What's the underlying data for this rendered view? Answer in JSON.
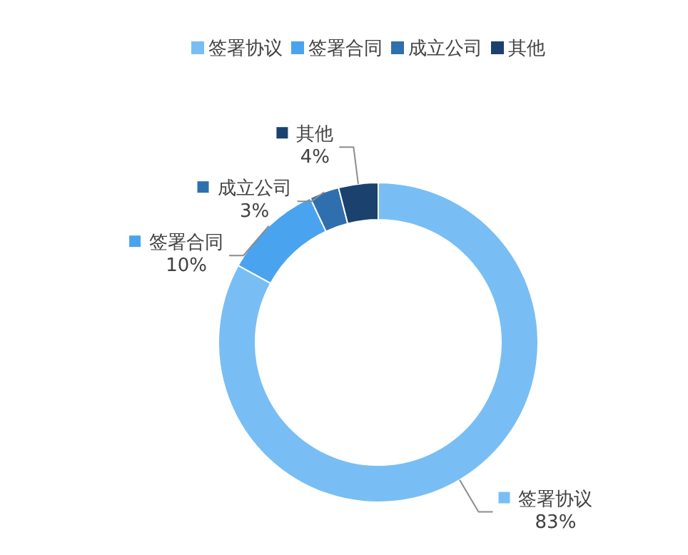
{
  "chart_data": {
    "type": "donut",
    "categories": [
      "签署协议",
      "签署合同",
      "成立公司",
      "其他"
    ],
    "values": [
      83,
      10,
      3,
      4
    ],
    "colors": [
      "#78bef5",
      "#4aa3ee",
      "#2f6fae",
      "#1b426e"
    ],
    "value_labels": [
      "83%",
      "10%",
      "3%",
      "4%"
    ],
    "legend": "top"
  }
}
